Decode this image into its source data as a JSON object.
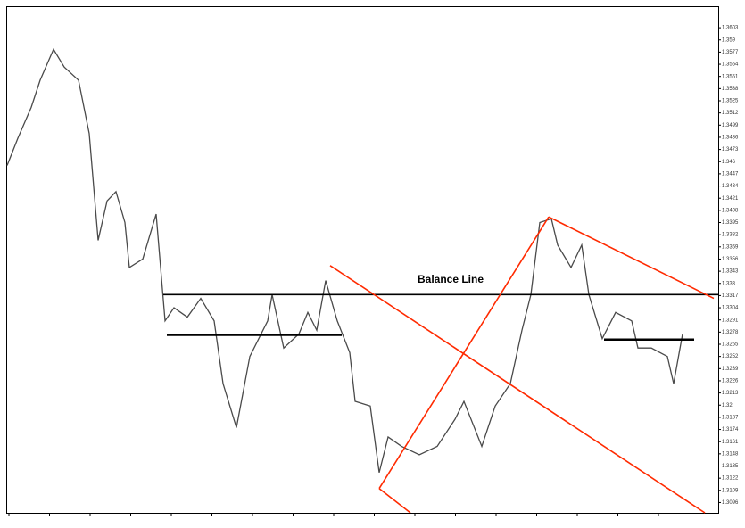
{
  "chart_data": {
    "type": "line",
    "annotation": "Balance Line",
    "xlim": [
      8,
      805
    ],
    "ylim": [
      1.3085,
      1.3625
    ],
    "yticks": [
      1.3603,
      1.359,
      1.3577,
      1.3564,
      1.3551,
      1.3538,
      1.3525,
      1.3512,
      1.3499,
      1.3486,
      1.3473,
      1.346,
      1.3447,
      1.3434,
      1.3421,
      1.3408,
      1.3395,
      1.3382,
      1.3369,
      1.3356,
      1.3343,
      1.333,
      1.3317,
      1.3304,
      1.3291,
      1.3278,
      1.3265,
      1.3252,
      1.3239,
      1.3226,
      1.3213,
      1.32,
      1.3187,
      1.3174,
      1.3161,
      1.3148,
      1.3135,
      1.3122,
      1.3109,
      1.3096
    ],
    "series": [
      {
        "color": "#4a4a4a",
        "x": [
          8,
          20,
          35,
          45,
          60,
          72,
          88,
          100,
          110,
          120,
          130,
          140,
          145,
          160,
          175,
          180,
          185,
          195,
          210,
          225,
          240,
          250,
          265,
          280,
          300,
          305,
          318,
          335,
          345,
          355,
          365,
          378,
          392,
          398,
          415,
          425,
          435,
          450,
          470,
          490,
          510,
          520,
          540,
          555,
          572,
          585,
          595,
          605,
          618,
          625,
          640,
          652,
          660,
          675,
          690,
          708,
          715,
          730,
          748,
          755,
          765
        ],
        "values": [
          1.3456,
          1.3485,
          1.3518,
          1.3547,
          1.358,
          1.3561,
          1.3547,
          1.349,
          1.3376,
          1.3418,
          1.3428,
          1.3395,
          1.3347,
          1.3356,
          1.3404,
          1.3347,
          1.329,
          1.3304,
          1.3294,
          1.3314,
          1.329,
          1.3223,
          1.3176,
          1.3252,
          1.329,
          1.3318,
          1.3261,
          1.3276,
          1.3299,
          1.328,
          1.3333,
          1.329,
          1.3256,
          1.3204,
          1.3199,
          1.3128,
          1.3166,
          1.3156,
          1.3147,
          1.3156,
          1.3185,
          1.3204,
          1.3156,
          1.3199,
          1.3223,
          1.328,
          1.3318,
          1.3395,
          1.3399,
          1.3371,
          1.3347,
          1.3371,
          1.3318,
          1.3271,
          1.3299,
          1.329,
          1.3261,
          1.3261,
          1.3252,
          1.3223,
          1.3276
        ]
      }
    ],
    "lines": [
      {
        "color": "#000000",
        "x": [
          183,
          805
        ],
        "y": [
          1.3318,
          1.3318
        ]
      },
      {
        "color": "#000000",
        "x": [
          187,
          383
        ],
        "y": [
          1.3275,
          1.3275
        ]
      },
      {
        "color": "#000000",
        "x": [
          677,
          778
        ],
        "y": [
          1.327,
          1.327
        ]
      },
      {
        "color": "#ff2a00",
        "x": [
          370,
          790
        ],
        "y": [
          1.3349,
          1.3085
        ]
      },
      {
        "color": "#ff2a00",
        "x": [
          425,
          615
        ],
        "y": [
          1.3111,
          1.3401
        ]
      },
      {
        "color": "#ff2a00",
        "x": [
          615,
          800
        ],
        "y": [
          1.3401,
          1.3314
        ]
      },
      {
        "color": "#ff2a00",
        "x": [
          425,
          460
        ],
        "y": [
          1.3111,
          1.3085
        ]
      }
    ]
  }
}
